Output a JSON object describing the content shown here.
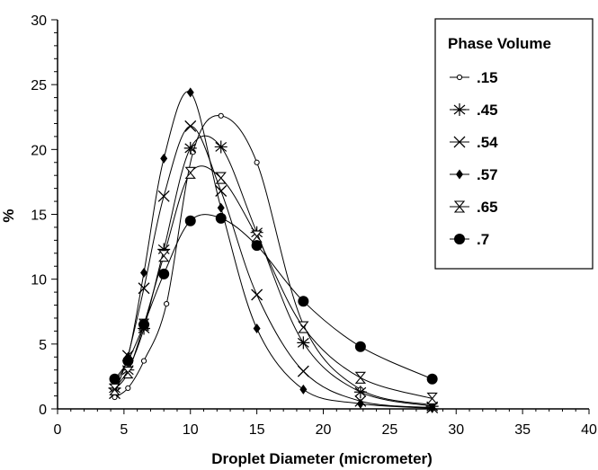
{
  "chart_data": {
    "type": "line",
    "xlabel": "Droplet Diameter (micrometer)",
    "ylabel": "%",
    "xlim": [
      0,
      40
    ],
    "ylim": [
      0,
      30
    ],
    "x_ticks": [
      0,
      5,
      10,
      15,
      20,
      25,
      30,
      35,
      40
    ],
    "y_ticks": [
      0,
      5,
      10,
      15,
      20,
      25,
      30
    ],
    "grid": false,
    "legend": {
      "title": "Phase Volume",
      "position": "top-right"
    },
    "series": [
      {
        "name": ".15",
        "marker": "open-circle",
        "x": [
          4.3,
          5.3,
          6.5,
          8.2,
          10.2,
          12.3,
          15.0,
          18.5,
          22.8,
          28.2
        ],
        "y": [
          0.9,
          1.6,
          3.7,
          8.1,
          19.8,
          22.6,
          19.0,
          6.5,
          1.5,
          0.3
        ]
      },
      {
        "name": ".45",
        "marker": "asterisk",
        "x": [
          4.3,
          5.3,
          6.5,
          8.0,
          10.0,
          12.3,
          15.0,
          18.5,
          22.8,
          28.2
        ],
        "y": [
          1.6,
          3.0,
          6.2,
          12.3,
          20.1,
          20.2,
          13.6,
          5.1,
          1.3,
          0.2
        ]
      },
      {
        "name": ".54",
        "marker": "x",
        "x": [
          4.3,
          5.3,
          6.5,
          8.0,
          10.0,
          12.3,
          15.0,
          18.5,
          22.8,
          28.2
        ],
        "y": [
          1.2,
          4.1,
          9.3,
          16.4,
          21.8,
          16.8,
          8.8,
          2.9,
          0.6,
          0.1
        ]
      },
      {
        "name": ".57",
        "marker": "filled-diamond",
        "x": [
          4.3,
          5.3,
          6.5,
          8.0,
          10.0,
          12.3,
          15.0,
          18.5,
          22.8,
          28.2
        ],
        "y": [
          2.1,
          4.0,
          10.5,
          19.3,
          24.4,
          15.5,
          6.2,
          1.5,
          0.4,
          0.05
        ]
      },
      {
        "name": ".65",
        "marker": "hourglass",
        "x": [
          4.3,
          5.3,
          6.5,
          8.0,
          10.0,
          12.3,
          15.0,
          18.5,
          22.8,
          28.2
        ],
        "y": [
          1.5,
          2.8,
          6.5,
          11.8,
          18.2,
          17.8,
          13.3,
          6.3,
          2.4,
          0.8
        ]
      },
      {
        "name": ".7",
        "marker": "filled-circle",
        "x": [
          4.3,
          5.3,
          6.5,
          8.0,
          10.0,
          12.3,
          15.0,
          18.5,
          22.8,
          28.2
        ],
        "y": [
          2.3,
          3.7,
          6.5,
          10.4,
          14.5,
          14.7,
          12.6,
          8.3,
          4.8,
          2.3
        ]
      }
    ]
  }
}
